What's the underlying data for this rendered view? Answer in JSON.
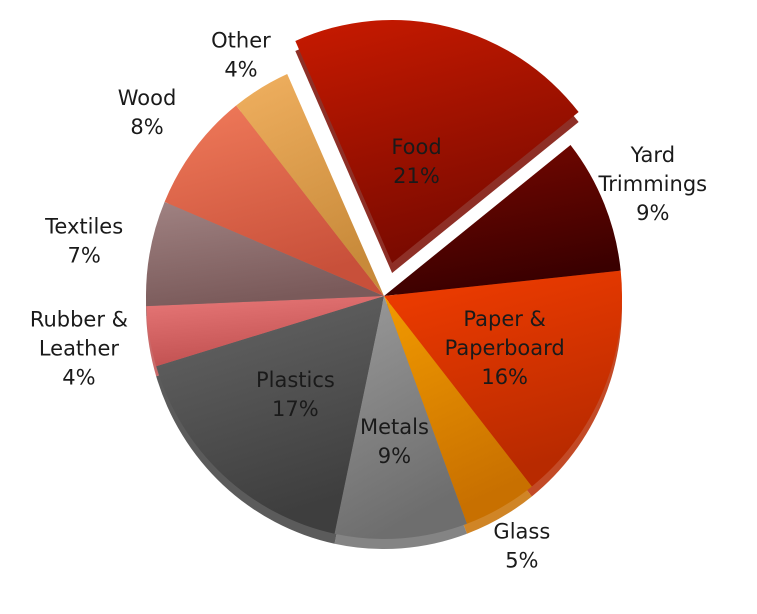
{
  "chart_data": {
    "type": "pie",
    "title": "",
    "slices": [
      {
        "label_lines": [
          "Food"
        ],
        "value_text": "21%",
        "value": 21,
        "color": "#c81a00",
        "dark": "#7a0a00",
        "exploded": true
      },
      {
        "label_lines": [
          "Yard",
          "Trimmings"
        ],
        "value_text": "9%",
        "value": 9,
        "color": "#7a0800",
        "dark": "#3a0000",
        "exploded": false
      },
      {
        "label_lines": [
          "Paper &",
          "Paperboard"
        ],
        "value_text": "16%",
        "value": 16,
        "color": "#f23d00",
        "dark": "#b82a00",
        "exploded": false
      },
      {
        "label_lines": [
          "Glass"
        ],
        "value_text": "5%",
        "value": 5,
        "color": "#f29a00",
        "dark": "#c87000",
        "exploded": false
      },
      {
        "label_lines": [
          "Metals"
        ],
        "value_text": "9%",
        "value": 9,
        "color": "#9a9a9a",
        "dark": "#6e6e6e",
        "exploded": false
      },
      {
        "label_lines": [
          "Plastics"
        ],
        "value_text": "17%",
        "value": 17,
        "color": "#666666",
        "dark": "#3e3e3e",
        "exploded": false
      },
      {
        "label_lines": [
          "Rubber &",
          "Leather"
        ],
        "value_text": "4%",
        "value": 4,
        "color": "#e87878",
        "dark": "#c05050",
        "exploded": false
      },
      {
        "label_lines": [
          "Textiles"
        ],
        "value_text": "7%",
        "value": 7,
        "color": "#a08282",
        "dark": "#7a5a5a",
        "exploded": false
      },
      {
        "label_lines": [
          "Wood"
        ],
        "value_text": "8%",
        "value": 8,
        "color": "#f07a5a",
        "dark": "#c8503a",
        "exploded": false
      },
      {
        "label_lines": [
          "Other"
        ],
        "value_text": "4%",
        "value": 4,
        "color": "#f0b060",
        "dark": "#c88a3a",
        "exploded": false
      }
    ]
  }
}
